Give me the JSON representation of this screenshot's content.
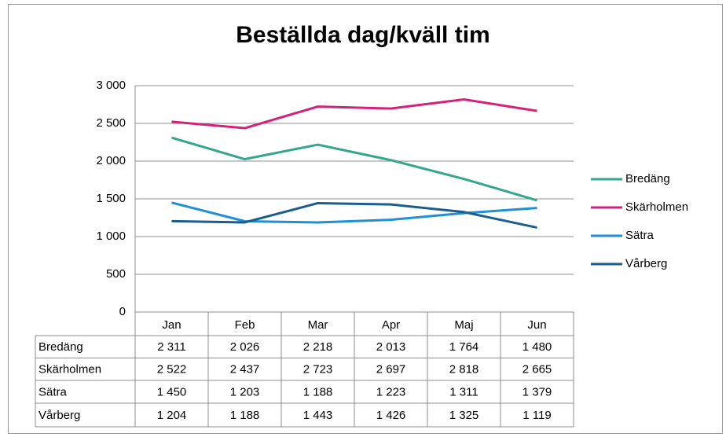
{
  "chart_data": {
    "type": "line",
    "title": "Beställda dag/kväll tim",
    "categories": [
      "Jan",
      "Feb",
      "Mar",
      "Apr",
      "Maj",
      "Jun"
    ],
    "series": [
      {
        "name": "Bredäng",
        "color": "#33a68e",
        "values": [
          2311,
          2026,
          2218,
          2013,
          1764,
          1480
        ],
        "value_labels": [
          "2 311",
          "2 026",
          "2 218",
          "2 013",
          "1 764",
          "1 480"
        ]
      },
      {
        "name": "Skärholmen",
        "color": "#d4217a",
        "values": [
          2522,
          2437,
          2723,
          2697,
          2818,
          2665
        ],
        "value_labels": [
          "2 522",
          "2 437",
          "2 723",
          "2 697",
          "2 818",
          "2 665"
        ]
      },
      {
        "name": "Sätra",
        "color": "#1f8fd6",
        "values": [
          1450,
          1203,
          1188,
          1223,
          1311,
          1379
        ],
        "value_labels": [
          "1 450",
          "1 203",
          "1 188",
          "1 223",
          "1 311",
          "1 379"
        ]
      },
      {
        "name": "Vårberg",
        "color": "#1a5e8e",
        "values": [
          1204,
          1188,
          1443,
          1426,
          1325,
          1119
        ],
        "value_labels": [
          "1 204",
          "1 188",
          "1 443",
          "1 426",
          "1 325",
          "1 119"
        ]
      }
    ],
    "ylim": [
      0,
      3000
    ],
    "yticks": [
      0,
      500,
      {
        "value": 1000,
        "label": "1 000"
      },
      {
        "value": 1500,
        "label": "1 500"
      },
      {
        "value": 2000,
        "label": "2 000"
      },
      {
        "value": 2500,
        "label": "2 500"
      },
      {
        "value": 3000,
        "label": "3 000"
      }
    ],
    "grid": true,
    "legend": "right"
  }
}
